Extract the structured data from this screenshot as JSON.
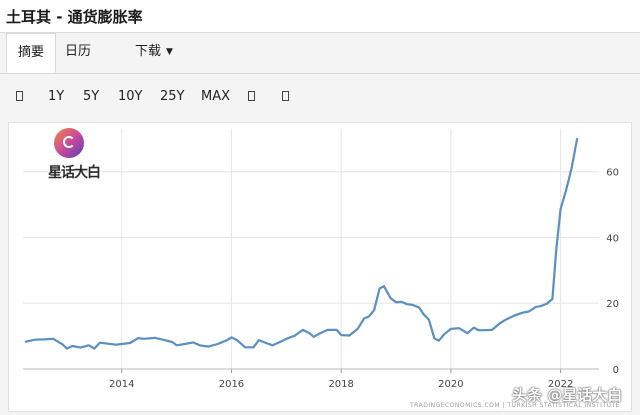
{
  "header": {
    "title": "土耳其 - 通货膨胀率"
  },
  "tabs": [
    {
      "label": "摘要"
    },
    {
      "label": "日历"
    },
    {
      "label": "下载"
    }
  ],
  "toolbar": {
    "ranges": [
      "1Y",
      "5Y",
      "10Y",
      "25Y",
      "MAX"
    ],
    "icons": [
      "calendar-icon",
      "chart-type-icon",
      "fullscreen-icon"
    ]
  },
  "logo": {
    "text": "星话大白",
    "icon": "logo-icon"
  },
  "source": "TRADINGECONOMICS.COM  |  TURKISH STATISTICAL INSTITUTE",
  "watermark": "头条 @星话大白",
  "colors": {
    "line": "#5b8fc0",
    "grid": "#e6e6e6"
  },
  "chart_data": {
    "type": "line",
    "title": "",
    "xlabel": "",
    "ylabel": "",
    "xlim": [
      2012.2,
      2022.7
    ],
    "ylim": [
      0,
      73
    ],
    "yticks": [
      0,
      20,
      40,
      60
    ],
    "xticks": [
      2014,
      2016,
      2018,
      2020,
      2022
    ],
    "grid": true,
    "series": [
      {
        "values": [
          [
            2012.25,
            8.3
          ],
          [
            2012.42,
            8.9
          ],
          [
            2012.58,
            9.0
          ],
          [
            2012.75,
            9.2
          ],
          [
            2012.92,
            7.5
          ],
          [
            2013.0,
            6.2
          ],
          [
            2013.1,
            7.0
          ],
          [
            2013.25,
            6.5
          ],
          [
            2013.4,
            7.2
          ],
          [
            2013.5,
            6.2
          ],
          [
            2013.6,
            8.0
          ],
          [
            2013.75,
            7.7
          ],
          [
            2013.9,
            7.4
          ],
          [
            2014.0,
            7.6
          ],
          [
            2014.15,
            7.9
          ],
          [
            2014.3,
            9.4
          ],
          [
            2014.4,
            9.2
          ],
          [
            2014.5,
            9.3
          ],
          [
            2014.6,
            9.5
          ],
          [
            2014.75,
            8.9
          ],
          [
            2014.92,
            8.2
          ],
          [
            2015.0,
            7.2
          ],
          [
            2015.15,
            7.6
          ],
          [
            2015.3,
            8.1
          ],
          [
            2015.42,
            7.2
          ],
          [
            2015.58,
            6.8
          ],
          [
            2015.75,
            7.6
          ],
          [
            2015.92,
            8.8
          ],
          [
            2016.0,
            9.6
          ],
          [
            2016.1,
            8.8
          ],
          [
            2016.25,
            6.6
          ],
          [
            2016.4,
            6.6
          ],
          [
            2016.5,
            8.8
          ],
          [
            2016.6,
            8.1
          ],
          [
            2016.75,
            7.2
          ],
          [
            2016.92,
            8.5
          ],
          [
            2017.0,
            9.2
          ],
          [
            2017.15,
            10.1
          ],
          [
            2017.3,
            11.9
          ],
          [
            2017.42,
            10.9
          ],
          [
            2017.5,
            9.8
          ],
          [
            2017.6,
            10.7
          ],
          [
            2017.75,
            11.9
          ],
          [
            2017.92,
            11.9
          ],
          [
            2018.0,
            10.3
          ],
          [
            2018.15,
            10.2
          ],
          [
            2018.3,
            12.2
          ],
          [
            2018.42,
            15.4
          ],
          [
            2018.5,
            15.9
          ],
          [
            2018.6,
            17.9
          ],
          [
            2018.7,
            24.5
          ],
          [
            2018.78,
            25.2
          ],
          [
            2018.9,
            21.6
          ],
          [
            2019.0,
            20.3
          ],
          [
            2019.1,
            20.4
          ],
          [
            2019.2,
            19.7
          ],
          [
            2019.3,
            19.5
          ],
          [
            2019.42,
            18.7
          ],
          [
            2019.5,
            16.7
          ],
          [
            2019.6,
            15.0
          ],
          [
            2019.7,
            9.3
          ],
          [
            2019.78,
            8.6
          ],
          [
            2019.88,
            10.6
          ],
          [
            2020.0,
            12.2
          ],
          [
            2020.15,
            12.4
          ],
          [
            2020.3,
            10.9
          ],
          [
            2020.42,
            12.6
          ],
          [
            2020.5,
            11.8
          ],
          [
            2020.6,
            11.8
          ],
          [
            2020.75,
            11.9
          ],
          [
            2020.9,
            14.0
          ],
          [
            2021.0,
            15.0
          ],
          [
            2021.15,
            16.2
          ],
          [
            2021.3,
            17.1
          ],
          [
            2021.42,
            17.5
          ],
          [
            2021.55,
            18.9
          ],
          [
            2021.65,
            19.2
          ],
          [
            2021.75,
            19.9
          ],
          [
            2021.85,
            21.3
          ],
          [
            2021.92,
            36.1
          ],
          [
            2022.0,
            48.7
          ],
          [
            2022.1,
            54.4
          ],
          [
            2022.2,
            61.1
          ],
          [
            2022.3,
            70.0
          ]
        ]
      }
    ]
  }
}
